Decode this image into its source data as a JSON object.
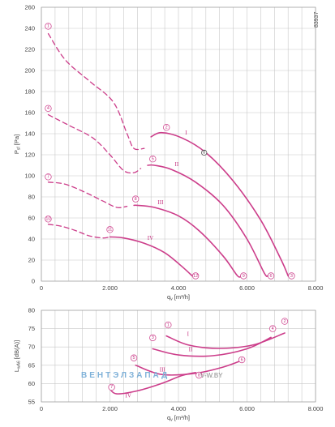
{
  "drawing_code": "83937",
  "watermark": {
    "brand": "ВЕНТЭЛЗАПАД",
    "site": "V-W.BY"
  },
  "colors": {
    "curve": "#cc3d8a",
    "grid": "#c8c8c8",
    "frame": "#9a9a9a"
  },
  "chart_data": [
    {
      "type": "line",
      "title": "",
      "xlabel": "q_v [m³/h]",
      "ylabel": "P_sf [Pa]",
      "xlim": [
        0,
        8000
      ],
      "ylim": [
        0,
        260
      ],
      "x_ticks": [
        0,
        2000,
        4000,
        6000,
        8000
      ],
      "x_tick_labels": [
        "0",
        "2.000",
        "4.000",
        "6.000",
        "8.000"
      ],
      "y_ticks": [
        0,
        20,
        40,
        60,
        80,
        100,
        120,
        140,
        160,
        180,
        200,
        220,
        240,
        260
      ],
      "grid": true,
      "series": [
        {
          "name": "I",
          "marker_start": "1",
          "marker_mid": "2",
          "marker_end": "3",
          "unstable": [
            [
              200,
              235
            ],
            [
              700,
              210
            ],
            [
              1400,
              190
            ],
            [
              2100,
              170
            ],
            [
              2500,
              140
            ],
            [
              2700,
              126
            ],
            [
              3000,
              126
            ]
          ],
          "stable": [
            [
              3200,
              137
            ],
            [
              3500,
              141
            ],
            [
              4100,
              136
            ],
            [
              4800,
              122
            ],
            [
              5600,
              95
            ],
            [
              6400,
              58
            ],
            [
              7000,
              20
            ],
            [
              7200,
              5
            ]
          ]
        },
        {
          "name": "II",
          "marker_start": "4",
          "marker_mid": "5",
          "marker_end": "6",
          "unstable": [
            [
              200,
              158
            ],
            [
              800,
              148
            ],
            [
              1500,
              136
            ],
            [
              2000,
              120
            ],
            [
              2400,
              105
            ],
            [
              2700,
              103
            ],
            [
              2900,
              107
            ]
          ],
          "stable": [
            [
              3100,
              110
            ],
            [
              3300,
              110
            ],
            [
              3800,
              106
            ],
            [
              4500,
              94
            ],
            [
              5300,
              72
            ],
            [
              6000,
              40
            ],
            [
              6500,
              8
            ],
            [
              6600,
              5
            ]
          ]
        },
        {
          "name": "III",
          "marker_start": "7",
          "marker_mid": "8",
          "marker_end": "9",
          "unstable": [
            [
              200,
              94
            ],
            [
              700,
              92
            ],
            [
              1300,
              84
            ],
            [
              1800,
              76
            ],
            [
              2200,
              70
            ],
            [
              2500,
              71
            ]
          ],
          "stable": [
            [
              2700,
              72
            ],
            [
              2800,
              72
            ],
            [
              3300,
              70
            ],
            [
              4000,
              62
            ],
            [
              4600,
              48
            ],
            [
              5300,
              24
            ],
            [
              5700,
              6
            ],
            [
              5800,
              4
            ]
          ]
        },
        {
          "name": "IV",
          "marker_start": "10",
          "marker_mid": "11",
          "marker_end": "12",
          "unstable": [
            [
              200,
              54
            ],
            [
              600,
              52
            ],
            [
              1000,
              48
            ],
            [
              1400,
              43
            ],
            [
              1800,
              41
            ],
            [
              2000,
              42
            ]
          ],
          "stable": [
            [
              2000,
              42
            ],
            [
              2400,
              41
            ],
            [
              3000,
              36
            ],
            [
              3600,
              27
            ],
            [
              4100,
              14
            ],
            [
              4400,
              5
            ]
          ]
        }
      ],
      "operating_points": [
        {
          "label": "1",
          "x": 200,
          "y": 242
        },
        {
          "label": "2",
          "x": 3650,
          "y": 146
        },
        {
          "label": "3",
          "x": 7300,
          "y": 5
        },
        {
          "label": "4",
          "x": 200,
          "y": 164
        },
        {
          "label": "5",
          "x": 3250,
          "y": 116
        },
        {
          "label": "6",
          "x": 6700,
          "y": 5
        },
        {
          "label": "7",
          "x": 200,
          "y": 99
        },
        {
          "label": "8",
          "x": 2750,
          "y": 78
        },
        {
          "label": "9",
          "x": 5900,
          "y": 5
        },
        {
          "label": "10",
          "x": 200,
          "y": 59
        },
        {
          "label": "11",
          "x": 2000,
          "y": 49
        },
        {
          "label": "12",
          "x": 4500,
          "y": 5
        }
      ],
      "design_point": {
        "label": "0",
        "x": 4750,
        "y": 122
      }
    },
    {
      "type": "line",
      "title": "",
      "xlabel": "q_v [m³/h]",
      "ylabel": "L_wA6 [dB(A)]",
      "xlim": [
        0,
        8000
      ],
      "ylim": [
        55,
        80
      ],
      "x_ticks": [
        0,
        2000,
        4000,
        6000,
        8000
      ],
      "x_tick_labels": [
        "0",
        "2.000",
        "4.000",
        "6.000",
        "8.000"
      ],
      "y_ticks": [
        55,
        60,
        65,
        70,
        75,
        80
      ],
      "grid": true,
      "series": [
        {
          "name": "I",
          "points": [
            [
              3650,
              73
            ],
            [
              4300,
              70.5
            ],
            [
              5200,
              69.6
            ],
            [
              6200,
              70.6
            ],
            [
              7100,
              73.8
            ]
          ]
        },
        {
          "name": "II",
          "points": [
            [
              3250,
              69.5
            ],
            [
              4000,
              67.8
            ],
            [
              5000,
              67.6
            ],
            [
              6000,
              69.5
            ],
            [
              6700,
              72.6
            ]
          ]
        },
        {
          "name": "III",
          "points": [
            [
              2750,
              65
            ],
            [
              3500,
              62.5
            ],
            [
              4500,
              62.8
            ],
            [
              5300,
              64.5
            ],
            [
              5900,
              66.5
            ]
          ]
        },
        {
          "name": "IV",
          "points": [
            [
              2000,
              58.5
            ],
            [
              2200,
              57.2
            ],
            [
              2800,
              58
            ],
            [
              3500,
              60
            ],
            [
              4100,
              62.2
            ],
            [
              4500,
              63
            ]
          ]
        }
      ],
      "markers": [
        {
          "label": "1",
          "x": 3700,
          "y": 76
        },
        {
          "label": "2",
          "x": 7100,
          "y": 77
        },
        {
          "label": "3",
          "x": 3250,
          "y": 72.5
        },
        {
          "label": "4",
          "x": 6750,
          "y": 75
        },
        {
          "label": "5",
          "x": 2700,
          "y": 67
        },
        {
          "label": "6",
          "x": 5850,
          "y": 66.5
        },
        {
          "label": "7",
          "x": 2050,
          "y": 59
        },
        {
          "label": "8",
          "x": 4600,
          "y": 62.3
        }
      ],
      "roman_labels": [
        {
          "text": "I",
          "x": 4250,
          "y": 73
        },
        {
          "text": "II",
          "x": 4300,
          "y": 68.8
        },
        {
          "text": "III",
          "x": 3450,
          "y": 63.3
        },
        {
          "text": "IV",
          "x": 2450,
          "y": 56.2
        }
      ]
    }
  ]
}
